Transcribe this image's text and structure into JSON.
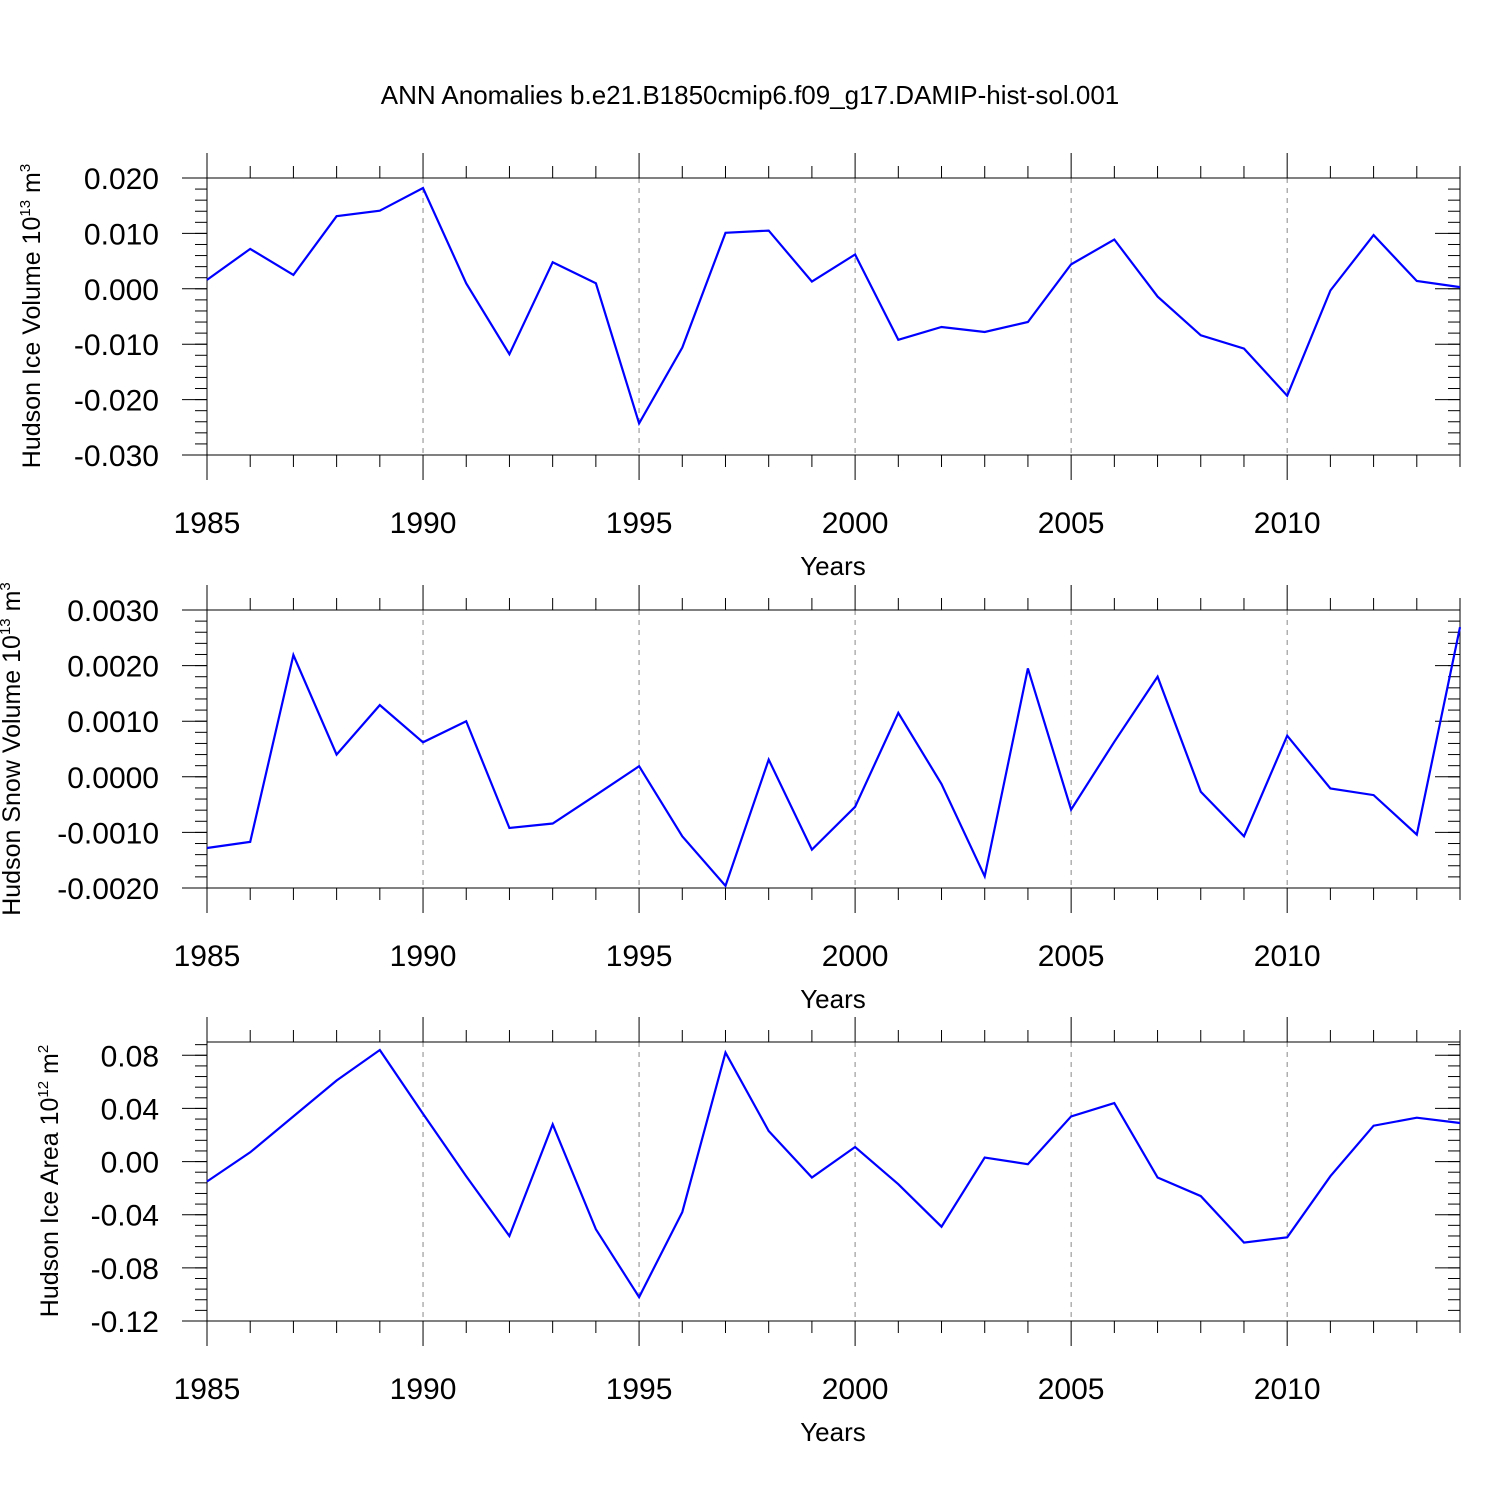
{
  "chart_title": "ANN Anomalies b.e21.B1850cmip6.f09_g17.DAMIP-hist-sol.001",
  "chart_data": [
    {
      "type": "line",
      "title": "",
      "xlabel": "Years",
      "ylabel": "Hudson Ice Volume 10",
      "ylabel_exp": "13",
      "ylabel_unit": "m",
      "ylabel_unit_exp": "3",
      "xlim": [
        1985,
        2014
      ],
      "ylim": [
        -0.03,
        0.02
      ],
      "xticks": [
        "1985",
        "1990",
        "1995",
        "2000",
        "2005",
        "2010"
      ],
      "yticks": [
        "0.020",
        "0.010",
        "0.000",
        "-0.010",
        "-0.020",
        "-0.030"
      ],
      "line_color": "#0000ff",
      "grid": "vertical dashed at major x ticks",
      "x": [
        1985,
        1986,
        1987,
        1988,
        1989,
        1990,
        1991,
        1992,
        1993,
        1994,
        1995,
        1996,
        1997,
        1998,
        1999,
        2000,
        2001,
        2002,
        2003,
        2004,
        2005,
        2006,
        2007,
        2008,
        2009,
        2010,
        2011,
        2012,
        2013,
        2014
      ],
      "values": [
        0.0016,
        0.0072,
        0.0025,
        0.0131,
        0.0141,
        0.0182,
        0.001,
        -0.0118,
        0.0048,
        0.001,
        -0.0243,
        -0.0106,
        0.0101,
        0.0105,
        0.0013,
        0.0062,
        -0.0092,
        -0.0069,
        -0.0078,
        -0.006,
        0.0044,
        0.0089,
        -0.0014,
        -0.0084,
        -0.0108,
        -0.0193,
        -0.0003,
        0.0097,
        0.0014,
        0.0003
      ]
    },
    {
      "type": "line",
      "title": "",
      "xlabel": "Years",
      "ylabel": "Hudson Snow Volume 10",
      "ylabel_exp": "13",
      "ylabel_unit": "m",
      "ylabel_unit_exp": "3",
      "xlim": [
        1985,
        2014
      ],
      "ylim": [
        -0.002,
        0.003
      ],
      "xticks": [
        "1985",
        "1990",
        "1995",
        "2000",
        "2005",
        "2010"
      ],
      "yticks": [
        "0.0030",
        "0.0020",
        "0.0010",
        "0.0000",
        "-0.0010",
        "-0.0020"
      ],
      "line_color": "#0000ff",
      "grid": "vertical dashed at major x ticks",
      "x": [
        1985,
        1986,
        1987,
        1988,
        1989,
        1990,
        1991,
        1992,
        1993,
        1994,
        1995,
        1996,
        1997,
        1998,
        1999,
        2000,
        2001,
        2002,
        2003,
        2004,
        2005,
        2006,
        2007,
        2008,
        2009,
        2010,
        2011,
        2012,
        2013,
        2014
      ],
      "values": [
        -0.00128,
        -0.00117,
        0.00219,
        0.0004,
        0.00129,
        0.00062,
        0.001,
        -0.00092,
        -0.00084,
        -0.00033,
        0.00019,
        -0.00107,
        -0.00196,
        0.00031,
        -0.00131,
        -0.00054,
        0.00115,
        -0.00013,
        -0.00179,
        0.00195,
        -0.00059,
        0.00063,
        0.0018,
        -0.00027,
        -0.00107,
        0.00074,
        -0.00021,
        -0.00033,
        -0.00104,
        0.00269
      ]
    },
    {
      "type": "line",
      "title": "",
      "xlabel": "Years",
      "ylabel": "Hudson Ice Area 10",
      "ylabel_exp": "12",
      "ylabel_unit": "m",
      "ylabel_unit_exp": "2",
      "xlim": [
        1985,
        2014
      ],
      "ylim": [
        -0.12,
        0.09
      ],
      "xticks": [
        "1985",
        "1990",
        "1995",
        "2000",
        "2005",
        "2010"
      ],
      "yticks": [
        "0.08",
        "0.04",
        "0.00",
        "-0.04",
        "-0.08",
        "-0.12"
      ],
      "line_color": "#0000ff",
      "grid": "vertical dashed at major x ticks",
      "x": [
        1985,
        1986,
        1987,
        1988,
        1989,
        1990,
        1991,
        1992,
        1993,
        1994,
        1995,
        1996,
        1997,
        1998,
        1999,
        2000,
        2001,
        2002,
        2003,
        2004,
        2005,
        2006,
        2007,
        2008,
        2009,
        2010,
        2011,
        2012,
        2013,
        2014
      ],
      "values": [
        -0.015,
        0.007,
        0.034,
        0.061,
        0.084,
        0.036,
        -0.011,
        -0.056,
        0.028,
        -0.051,
        -0.102,
        -0.038,
        0.082,
        0.023,
        -0.012,
        0.011,
        -0.017,
        -0.049,
        0.003,
        -0.002,
        0.034,
        0.044,
        -0.012,
        -0.026,
        -0.061,
        -0.057,
        -0.011,
        0.027,
        0.033,
        0.029
      ]
    }
  ]
}
